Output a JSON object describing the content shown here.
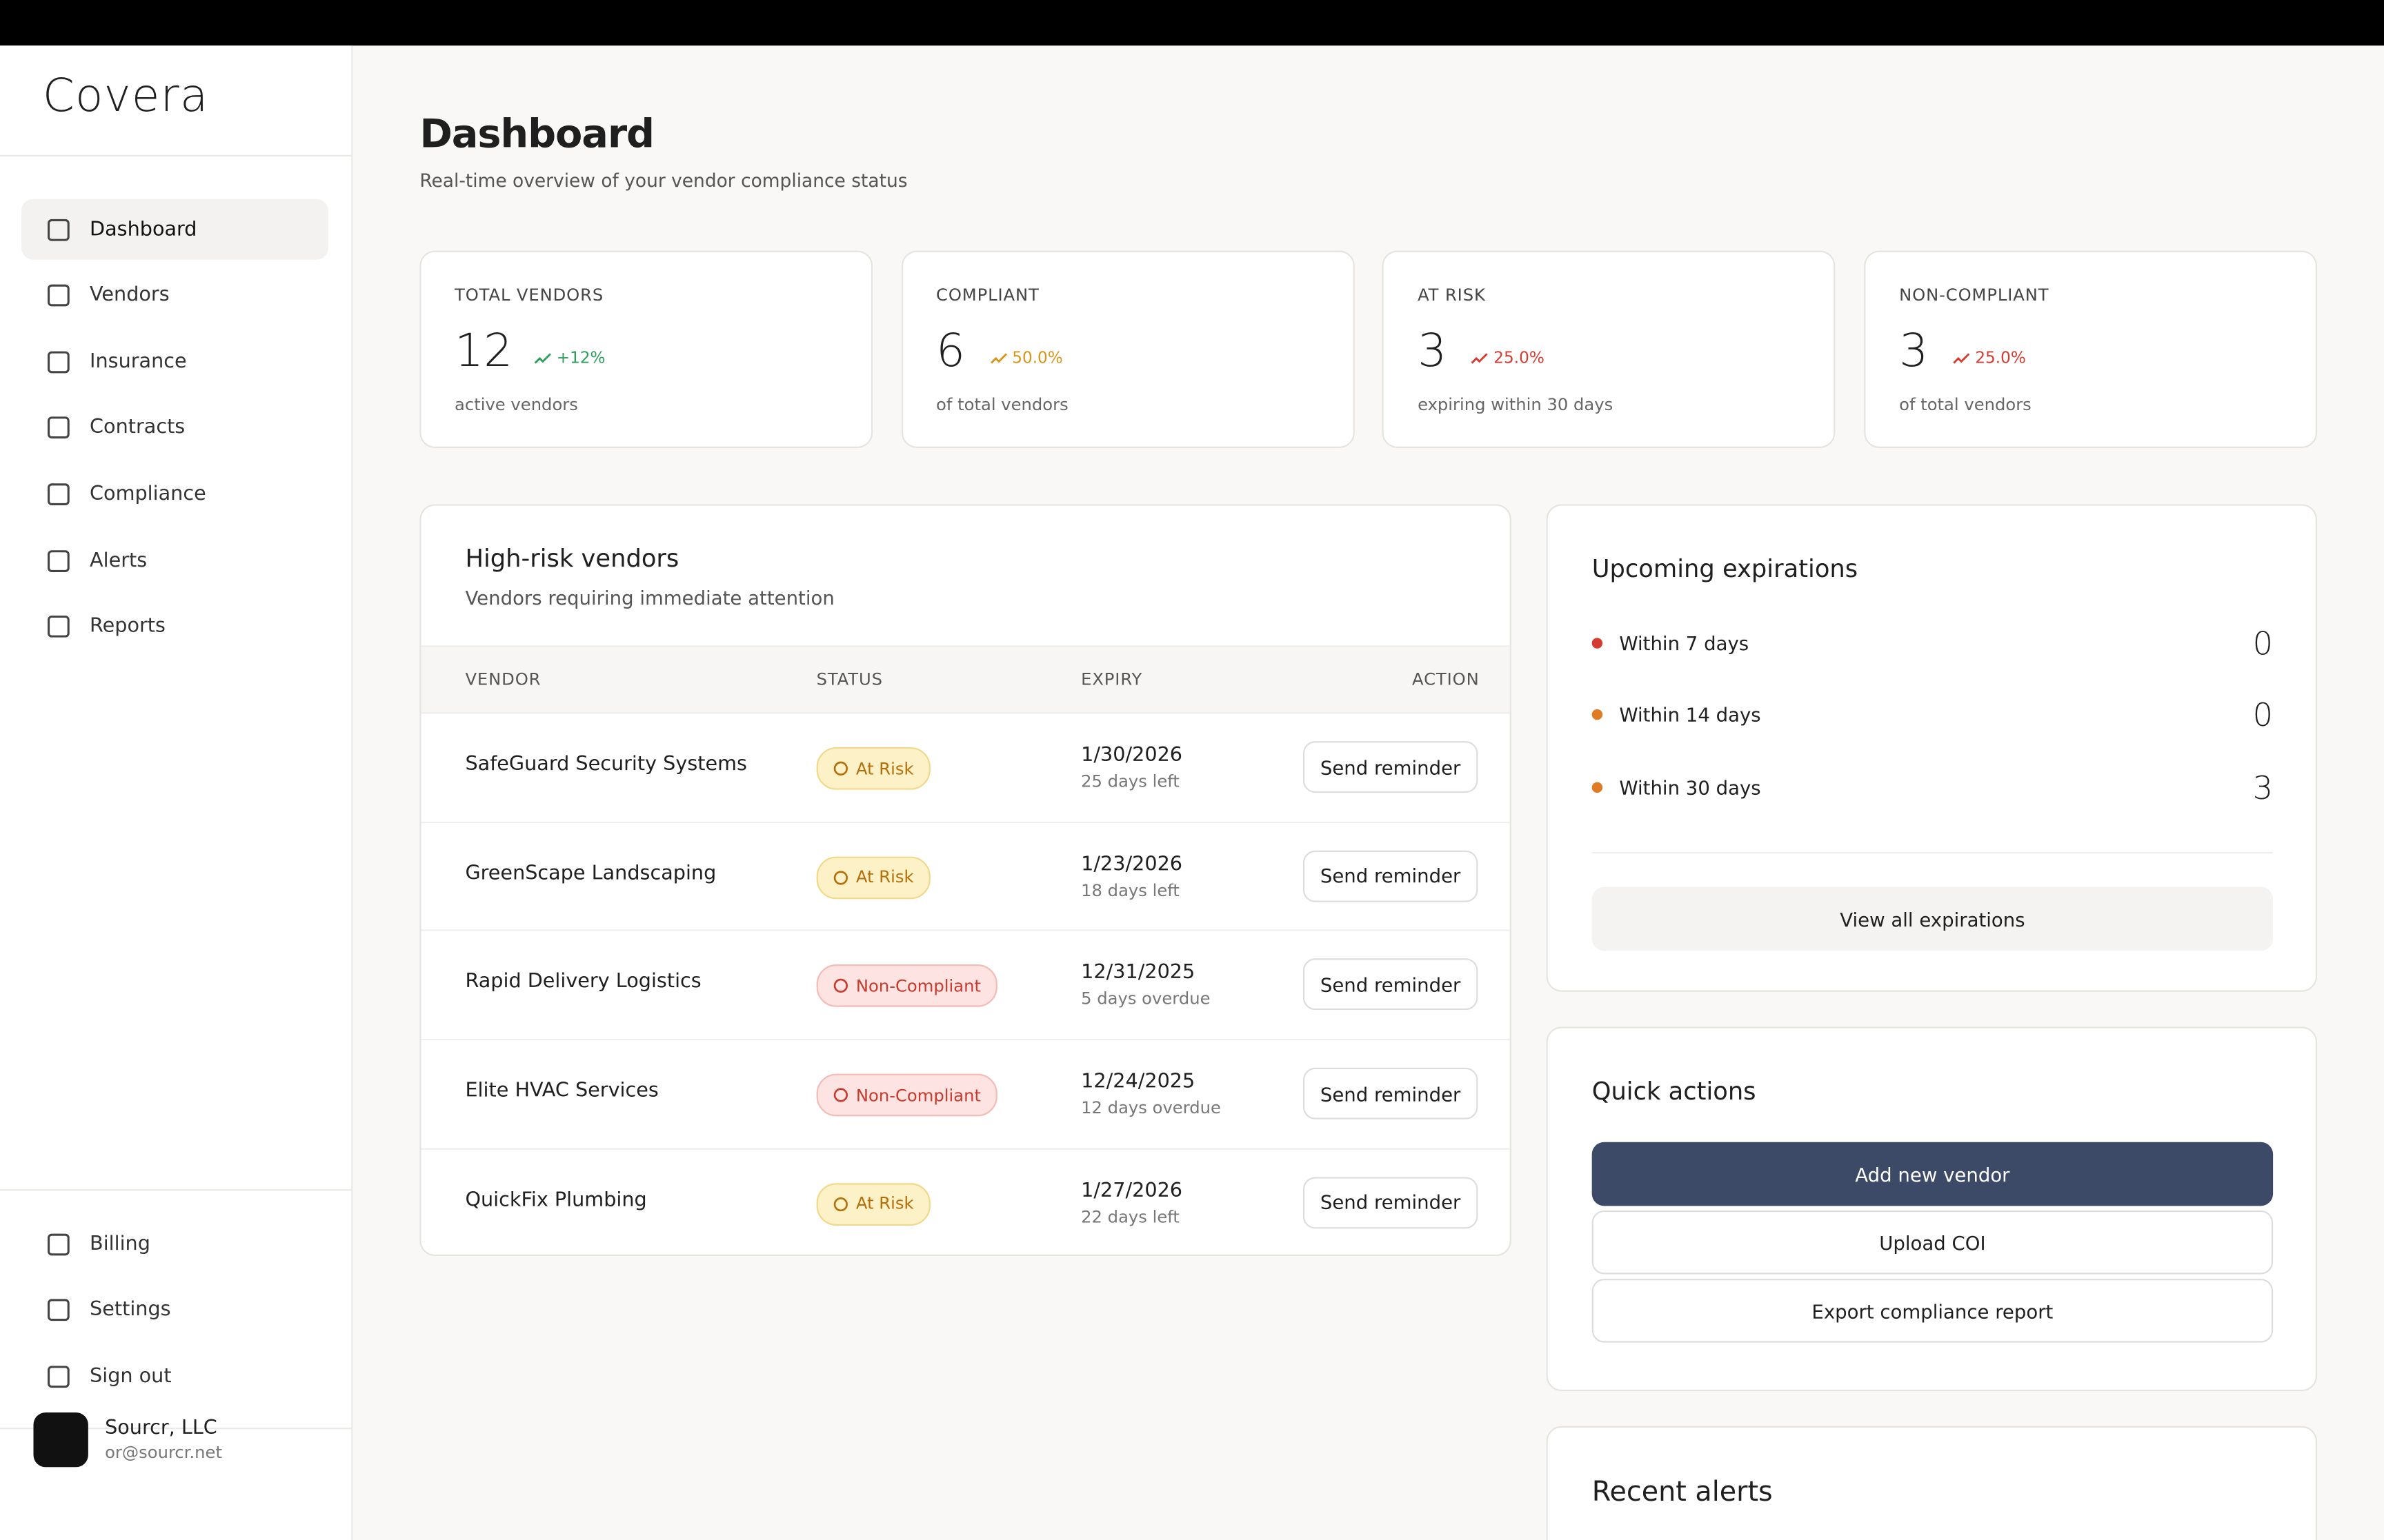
{
  "brand": "Covera",
  "nav": {
    "main": [
      "Dashboard",
      "Vendors",
      "Insurance",
      "Contracts",
      "Compliance",
      "Alerts",
      "Reports"
    ],
    "footer": [
      "Billing",
      "Settings",
      "Sign out"
    ]
  },
  "account": {
    "name": "Sourcr, LLC",
    "email": "or@sourcr.net"
  },
  "header": {
    "title": "Dashboard",
    "subtitle": "Real-time overview of your vendor compliance status"
  },
  "stats": [
    {
      "label": "TOTAL VENDORS",
      "value": 12,
      "change": "+12%",
      "note": "active vendors"
    },
    {
      "label": "COMPLIANT",
      "value": 6,
      "change": "50.0%",
      "note": "of total vendors"
    },
    {
      "label": "AT RISK",
      "value": 3,
      "change": "25.0%",
      "note": "expiring within 30 days"
    },
    {
      "label": "NON-COMPLIANT",
      "value": 3,
      "change": "25.0%",
      "note": "of total vendors"
    }
  ],
  "high_risk": {
    "title": "High-risk vendors",
    "subtitle": "Vendors requiring immediate attention",
    "columns": [
      "VENDOR",
      "STATUS",
      "EXPIRY",
      "ACTION"
    ],
    "rows": [
      {
        "vendor": "SafeGuard Security Systems",
        "status": "At Risk",
        "date": "1/30/2026",
        "remaining": "25 days left",
        "action": "Send reminder"
      },
      {
        "vendor": "GreenScape Landscaping",
        "status": "At Risk",
        "date": "1/23/2026",
        "remaining": "18 days left",
        "action": "Send reminder"
      },
      {
        "vendor": "Rapid Delivery Logistics",
        "status": "Non-Compliant",
        "date": "12/31/2025",
        "remaining": "5 days overdue",
        "action": "Send reminder"
      },
      {
        "vendor": "Elite HVAC Services",
        "status": "Non-Compliant",
        "date": "12/24/2025",
        "remaining": "12 days overdue",
        "action": "Send reminder"
      },
      {
        "vendor": "QuickFix Plumbing",
        "status": "At Risk",
        "date": "1/27/2026",
        "remaining": "22 days left",
        "action": "Send reminder"
      }
    ]
  },
  "expirations": {
    "title": "Upcoming expirations",
    "items": [
      {
        "label": "Within 7 days",
        "count": 0
      },
      {
        "label": "Within 14 days",
        "count": 0
      },
      {
        "label": "Within 30 days",
        "count": 3
      }
    ],
    "button": "View all expirations"
  },
  "quick_actions": {
    "title": "Quick actions",
    "buttons": [
      "Add new vendor",
      "Upload COI",
      "Export compliance report"
    ]
  },
  "recent_alerts": {
    "title": "Recent alerts"
  }
}
